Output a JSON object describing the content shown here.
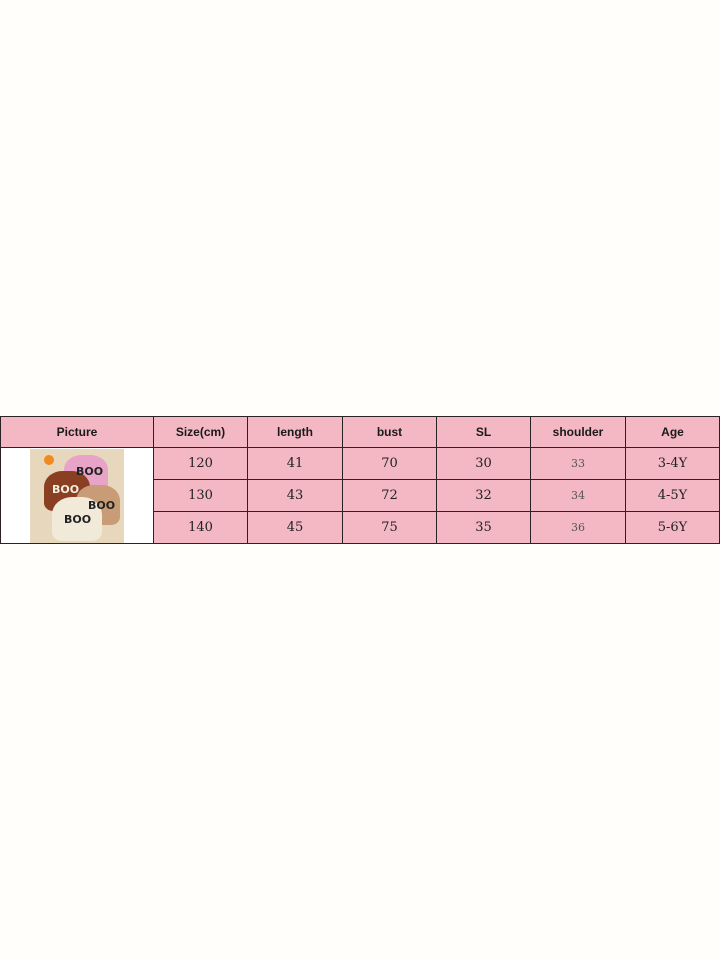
{
  "size_chart": {
    "headers": [
      "Picture",
      "Size(cm)",
      "length",
      "bust",
      "SL",
      "shoulder",
      "Age"
    ],
    "rows": [
      {
        "size": "120",
        "length": "41",
        "bust": "70",
        "sl": "30",
        "shoulder": "33",
        "age": "3-4Y"
      },
      {
        "size": "130",
        "length": "43",
        "bust": "72",
        "sl": "32",
        "shoulder": "34",
        "age": "4-5Y"
      },
      {
        "size": "140",
        "length": "45",
        "bust": "75",
        "sl": "35",
        "shoulder": "36",
        "age": "5-6Y"
      }
    ],
    "picture": {
      "text": "BOO",
      "sweater_colors": [
        "#e8a3c9",
        "#8a3f22",
        "#c79c76",
        "#f1ead9"
      ]
    }
  }
}
